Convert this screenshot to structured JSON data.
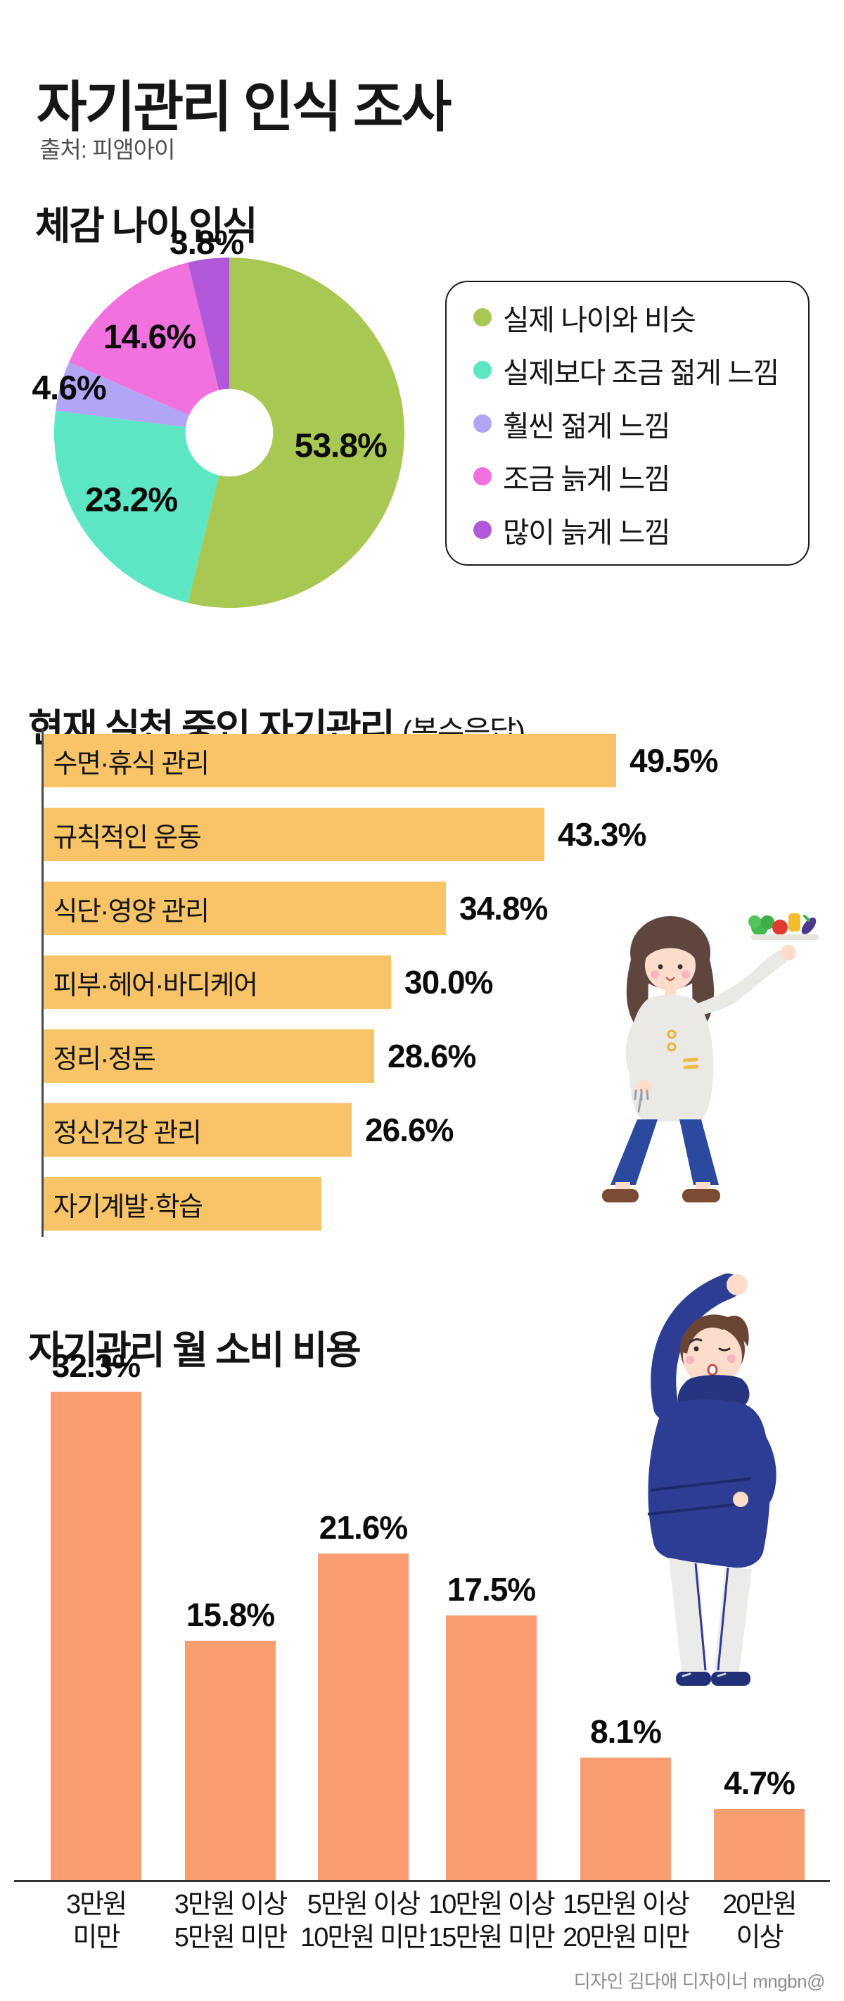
{
  "page": {
    "title": "자기관리 인식 조사",
    "source": "출처: 피앰아이",
    "footer": "디자인 김다애 디자이너 mngbn@",
    "background": "#ffffff"
  },
  "sections": {
    "perceived_age": {
      "heading": "체감 나이 인식"
    },
    "current_practices": {
      "heading": "현재 실천 중인 자기관리",
      "heading_suffix": "(복수응답)"
    },
    "monthly_spend": {
      "heading": "자기관리 월 소비 비용"
    }
  },
  "colors": {
    "hbar_fill": "#f9c367",
    "vbar_fill": "#f99e70",
    "axis_line": "#4a4a4a",
    "label_text": "#0b0b0b",
    "footer_text": "#8c8c8c"
  },
  "chart_data": [
    {
      "id": "perceived-age-donut",
      "type": "pie",
      "title": "체감 나이 인식",
      "donut_hole_ratio": 0.25,
      "start_angle_deg": 0,
      "direction": "clockwise",
      "legend_position": "right",
      "slices": [
        {
          "label": "실제 나이와 비슷",
          "value": 53.8,
          "label_text": "53.8%",
          "color": "#a9c853",
          "label_r_ratio": 0.64
        },
        {
          "label": "실제보다 조금 젊게 느낌",
          "value": 23.2,
          "label_text": "23.2%",
          "color": "#5ce6c3",
          "label_r_ratio": 0.68
        },
        {
          "label": "훨씬 젊게 느낌",
          "value": 4.6,
          "label_text": "4.6%",
          "color": "#b3a5f6",
          "label_r_ratio": 0.95
        },
        {
          "label": "조금 늙게 느낌",
          "value": 14.6,
          "label_text": "14.6%",
          "color": "#f171de",
          "label_r_ratio": 0.71
        },
        {
          "label": "많이 늙게 느낌",
          "value": 3.8,
          "label_text": "3.8%",
          "color": "#b158d8",
          "label_r_ratio": 1.09
        }
      ]
    },
    {
      "id": "practices-hbar",
      "type": "bar",
      "orientation": "horizontal",
      "title": "현재 실천 중인 자기관리 (복수응답)",
      "xlim": [
        0,
        55
      ],
      "grid": false,
      "categories": [
        "수면·휴식 관리",
        "규칙적인 운동",
        "식단·영양 관리",
        "피부·헤어·바디케어",
        "정리·정돈",
        "정신건강 관리",
        "자기계발·학습"
      ],
      "values": [
        49.5,
        43.3,
        34.8,
        30.0,
        28.6,
        26.6,
        24.0
      ],
      "value_labels": [
        "49.5%",
        "43.3%",
        "34.8%",
        "30.0%",
        "28.6%",
        "26.6%",
        ""
      ]
    },
    {
      "id": "spend-vbar",
      "type": "bar",
      "orientation": "vertical",
      "title": "자기관리 월 소비 비용",
      "ylim": [
        0,
        35
      ],
      "grid": false,
      "categories": [
        [
          "3만원",
          "미만"
        ],
        [
          "3만원 이상",
          "5만원 미만"
        ],
        [
          "5만원 이상",
          "10만원 미만"
        ],
        [
          "10만원 이상",
          "15만원 미만"
        ],
        [
          "15만원 이상",
          "20만원 미만"
        ],
        [
          "20만원",
          "이상"
        ]
      ],
      "values": [
        32.3,
        15.8,
        21.6,
        17.5,
        8.1,
        4.7
      ],
      "value_labels": [
        "32.3%",
        "15.8%",
        "21.6%",
        "17.5%",
        "8.1%",
        "4.7%"
      ]
    }
  ],
  "illustrations": {
    "woman": "woman holding a tray of vegetables with a fork",
    "man": "man in navy hoodie doing a side stretch"
  }
}
